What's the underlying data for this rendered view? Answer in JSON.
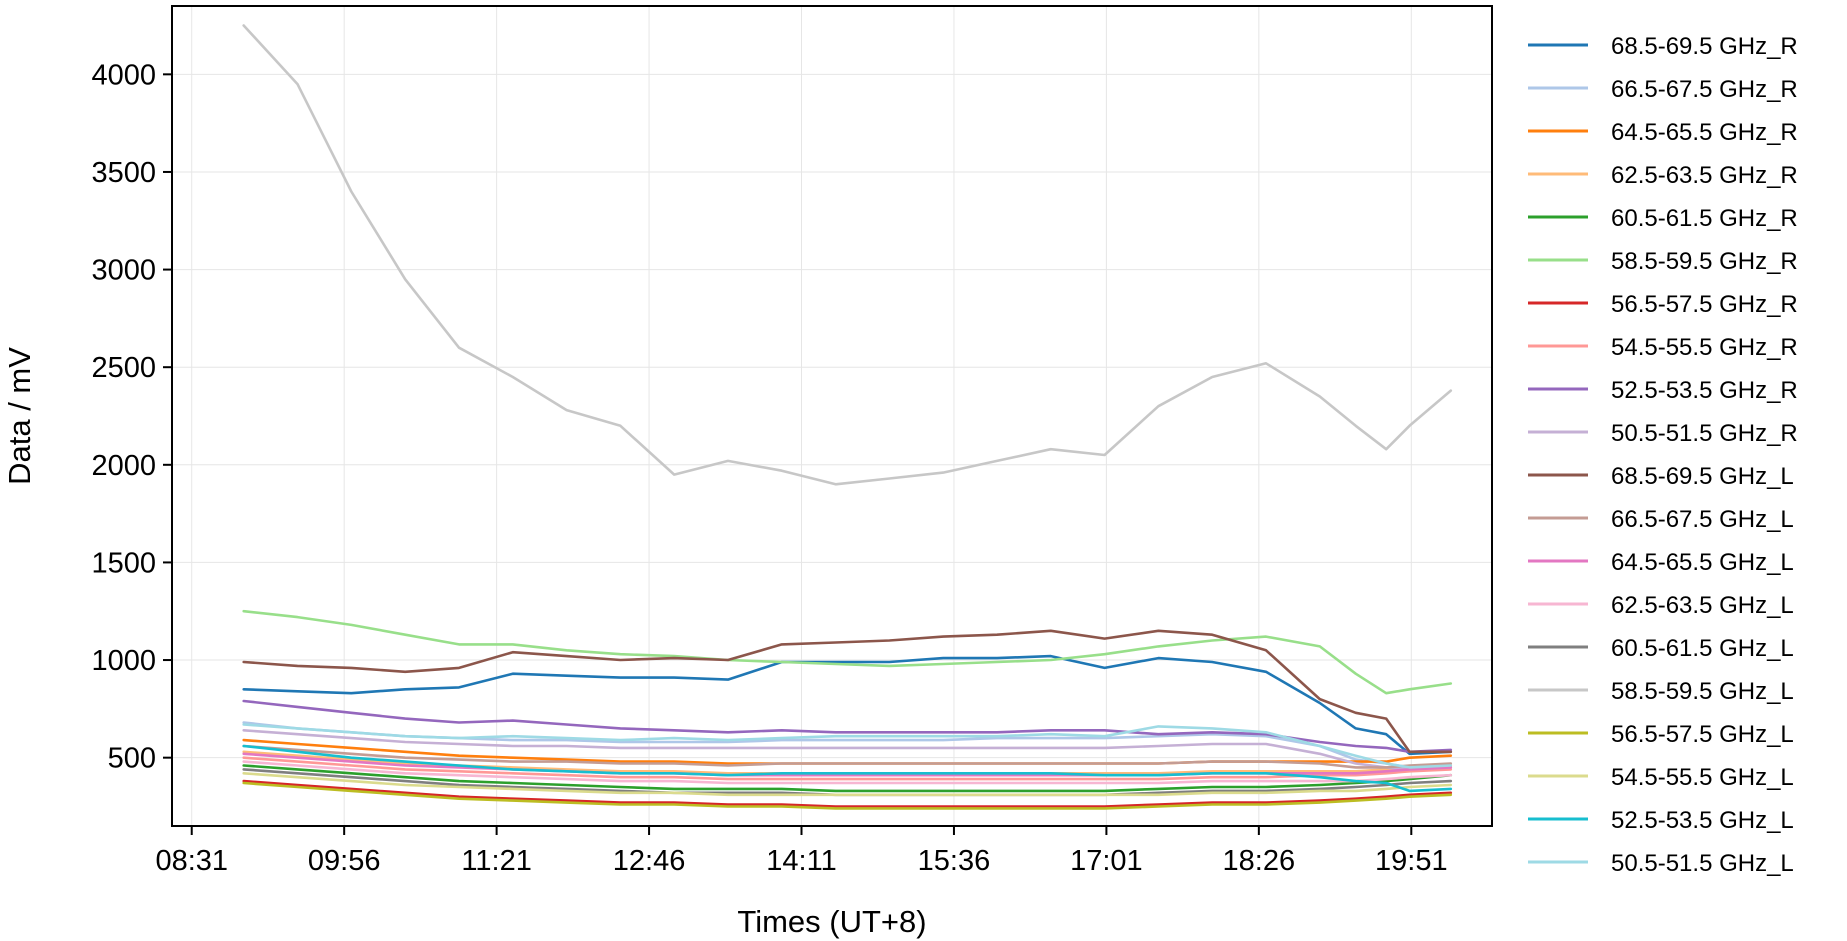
{
  "chart_data": {
    "type": "line",
    "title": "",
    "xlabel": "Times (UT+8)",
    "ylabel": "Data / mV",
    "x_ticks": [
      "08:31",
      "09:56",
      "11:21",
      "12:46",
      "14:11",
      "15:36",
      "17:01",
      "18:26",
      "19:51"
    ],
    "y_ticks": [
      500,
      1000,
      1500,
      2000,
      2500,
      3000,
      3500,
      4000
    ],
    "xlim": [
      "08:20",
      "20:36"
    ],
    "ylim": [
      150,
      4350
    ],
    "grid": true,
    "legend_position": "outside-right",
    "x": [
      "09:00",
      "09:30",
      "10:00",
      "10:30",
      "11:00",
      "11:30",
      "12:00",
      "12:30",
      "13:00",
      "13:30",
      "14:00",
      "14:30",
      "15:00",
      "15:30",
      "16:00",
      "16:30",
      "17:00",
      "17:30",
      "18:00",
      "18:30",
      "19:00",
      "19:20",
      "19:37",
      "19:50",
      "20:13"
    ],
    "series": [
      {
        "name": "68.5-69.5 GHz_R",
        "color": "#1f77b4",
        "values": [
          850,
          840,
          830,
          850,
          860,
          930,
          920,
          910,
          910,
          900,
          990,
          990,
          990,
          1010,
          1010,
          1020,
          960,
          1010,
          990,
          940,
          780,
          650,
          620,
          520,
          530
        ]
      },
      {
        "name": "66.5-67.5 GHz_R",
        "color": "#aec7e8",
        "values": [
          680,
          650,
          630,
          610,
          600,
          590,
          590,
          580,
          580,
          580,
          590,
          590,
          590,
          590,
          600,
          600,
          600,
          610,
          620,
          610,
          560,
          490,
          470,
          450,
          460
        ]
      },
      {
        "name": "64.5-65.5 GHz_R",
        "color": "#ff7f0e",
        "values": [
          590,
          570,
          550,
          530,
          510,
          500,
          490,
          480,
          480,
          470,
          470,
          470,
          470,
          470,
          470,
          470,
          470,
          470,
          480,
          480,
          480,
          480,
          480,
          500,
          510
        ]
      },
      {
        "name": "62.5-63.5 GHz_R",
        "color": "#ffbb78",
        "values": [
          530,
          510,
          490,
          470,
          460,
          450,
          440,
          430,
          430,
          420,
          420,
          420,
          420,
          420,
          420,
          420,
          420,
          420,
          430,
          430,
          430,
          430,
          440,
          450,
          460
        ]
      },
      {
        "name": "60.5-61.5 GHz_R",
        "color": "#2ca02c",
        "values": [
          460,
          440,
          420,
          400,
          380,
          370,
          360,
          350,
          340,
          340,
          340,
          330,
          330,
          330,
          330,
          330,
          330,
          340,
          350,
          350,
          360,
          370,
          380,
          390,
          410
        ]
      },
      {
        "name": "58.5-59.5 GHz_R",
        "color": "#98df8a",
        "values": [
          1250,
          1220,
          1180,
          1130,
          1080,
          1080,
          1050,
          1030,
          1020,
          1000,
          990,
          980,
          970,
          980,
          990,
          1000,
          1030,
          1070,
          1100,
          1120,
          1070,
          930,
          830,
          850,
          880
        ]
      },
      {
        "name": "56.5-57.5 GHz_R",
        "color": "#d62728",
        "values": [
          380,
          360,
          340,
          320,
          300,
          290,
          280,
          270,
          270,
          260,
          260,
          250,
          250,
          250,
          250,
          250,
          250,
          260,
          270,
          270,
          280,
          290,
          300,
          310,
          320
        ]
      },
      {
        "name": "54.5-55.5 GHz_R",
        "color": "#ff9896",
        "values": [
          500,
          480,
          460,
          440,
          430,
          420,
          410,
          400,
          400,
          390,
          390,
          390,
          390,
          390,
          390,
          390,
          390,
          390,
          400,
          400,
          410,
          410,
          420,
          430,
          440
        ]
      },
      {
        "name": "52.5-53.5 GHz_R",
        "color": "#9467bd",
        "values": [
          790,
          760,
          730,
          700,
          680,
          690,
          670,
          650,
          640,
          630,
          640,
          630,
          630,
          630,
          630,
          640,
          640,
          620,
          630,
          620,
          580,
          560,
          550,
          530,
          540
        ]
      },
      {
        "name": "50.5-51.5 GHz_R",
        "color": "#c5b0d5",
        "values": [
          640,
          620,
          600,
          580,
          570,
          560,
          560,
          550,
          550,
          550,
          550,
          550,
          550,
          550,
          550,
          550,
          550,
          560,
          570,
          570,
          520,
          470,
          450,
          440,
          450
        ]
      },
      {
        "name": "68.5-69.5 GHz_L",
        "color": "#8c564b",
        "values": [
          990,
          970,
          960,
          940,
          960,
          1040,
          1020,
          1000,
          1010,
          1000,
          1080,
          1090,
          1100,
          1120,
          1130,
          1150,
          1110,
          1150,
          1130,
          1050,
          800,
          730,
          700,
          530,
          530
        ]
      },
      {
        "name": "66.5-67.5 GHz_L",
        "color": "#c49c94",
        "values": [
          560,
          540,
          520,
          500,
          490,
          480,
          480,
          470,
          470,
          460,
          470,
          470,
          470,
          470,
          470,
          470,
          470,
          470,
          480,
          480,
          470,
          450,
          450,
          460,
          470
        ]
      },
      {
        "name": "64.5-65.5 GHz_L",
        "color": "#e377c2",
        "values": [
          520,
          500,
          480,
          460,
          450,
          440,
          430,
          420,
          420,
          410,
          410,
          410,
          410,
          410,
          410,
          410,
          410,
          410,
          420,
          420,
          420,
          420,
          430,
          440,
          450
        ]
      },
      {
        "name": "62.5-63.5 GHz_L",
        "color": "#f7b6d2",
        "values": [
          480,
          460,
          440,
          420,
          410,
          400,
          390,
          380,
          380,
          370,
          370,
          370,
          370,
          370,
          370,
          370,
          370,
          370,
          380,
          380,
          380,
          380,
          390,
          400,
          410
        ]
      },
      {
        "name": "60.5-61.5 GHz_L",
        "color": "#7f7f7f",
        "values": [
          440,
          420,
          400,
          380,
          360,
          350,
          340,
          330,
          320,
          320,
          320,
          310,
          310,
          310,
          310,
          310,
          310,
          320,
          330,
          330,
          340,
          350,
          360,
          370,
          380
        ]
      },
      {
        "name": "58.5-59.5 GHz_L",
        "color": "#c7c7c7",
        "values": [
          4250,
          3950,
          3400,
          2950,
          2600,
          2450,
          2280,
          2200,
          1950,
          2020,
          1970,
          1900,
          1930,
          1960,
          2020,
          2080,
          2050,
          2300,
          2450,
          2520,
          2350,
          2200,
          2080,
          2200,
          2380
        ]
      },
      {
        "name": "56.5-57.5 GHz_L",
        "color": "#bcbd22",
        "values": [
          370,
          350,
          330,
          310,
          290,
          280,
          270,
          260,
          260,
          250,
          250,
          240,
          240,
          240,
          240,
          240,
          240,
          250,
          260,
          260,
          270,
          280,
          290,
          300,
          310
        ]
      },
      {
        "name": "54.5-55.5 GHz_L",
        "color": "#dbdb8d",
        "values": [
          420,
          400,
          380,
          360,
          350,
          340,
          330,
          320,
          320,
          310,
          310,
          310,
          310,
          310,
          310,
          310,
          310,
          310,
          320,
          320,
          330,
          330,
          340,
          350,
          360
        ]
      },
      {
        "name": "52.5-53.5 GHz_L",
        "color": "#17becf",
        "values": [
          560,
          530,
          500,
          480,
          460,
          440,
          430,
          420,
          420,
          410,
          420,
          420,
          420,
          420,
          420,
          420,
          410,
          410,
          420,
          420,
          400,
          380,
          370,
          330,
          340
        ]
      },
      {
        "name": "50.5-51.5 GHz_L",
        "color": "#9edae5",
        "values": [
          670,
          650,
          630,
          610,
          600,
          610,
          600,
          590,
          600,
          590,
          600,
          610,
          610,
          610,
          610,
          620,
          610,
          660,
          650,
          630,
          560,
          510,
          470,
          450,
          460
        ]
      }
    ]
  }
}
